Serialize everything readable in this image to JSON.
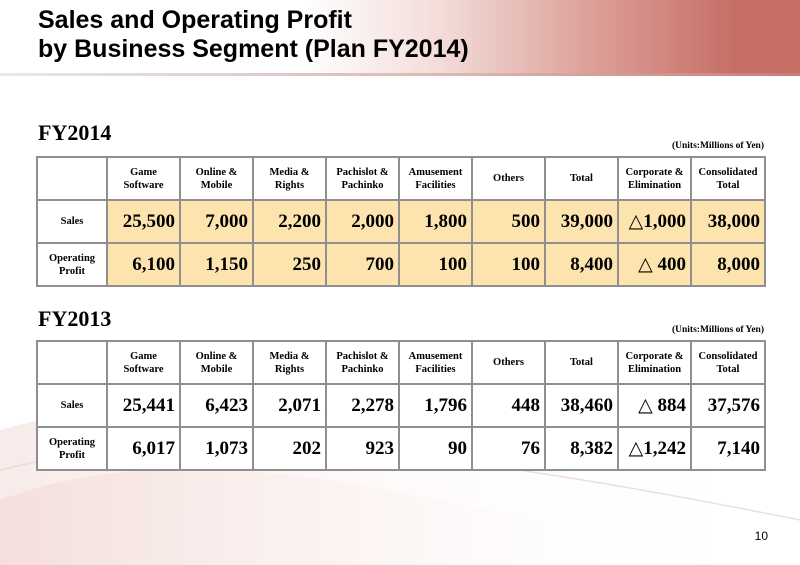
{
  "title": {
    "line1": "Sales and Operating Profit",
    "line2": "by Business Segment (Plan FY2014)"
  },
  "page_number": "10",
  "columns": [
    {
      "line1": "Game",
      "line2": "Software"
    },
    {
      "line1": "Online &",
      "line2": "Mobile"
    },
    {
      "line1": "Media &",
      "line2": "Rights"
    },
    {
      "line1": "Pachislot &",
      "line2": "Pachinko"
    },
    {
      "line1": "Amusement",
      "line2": "Facilities"
    },
    {
      "line1": "Others",
      "line2": ""
    },
    {
      "line1": "Total",
      "line2": ""
    },
    {
      "line1": "Corporate &",
      "line2": "Elimination"
    },
    {
      "line1": "Consolidated",
      "line2": "Total"
    }
  ],
  "row_labels": {
    "sales": "Sales",
    "op_line1": "Operating",
    "op_line2": "Profit"
  },
  "fy2014": {
    "heading": "FY2014",
    "units": "(Units:Millions of Yen)",
    "sales": [
      "25,500",
      "7,000",
      "2,200",
      "2,000",
      "1,800",
      "500",
      "39,000",
      "△1,000",
      "38,000"
    ],
    "operating_profit": [
      "6,100",
      "1,150",
      "250",
      "700",
      "100",
      "100",
      "8,400",
      "△ 400",
      "8,000"
    ]
  },
  "fy2013": {
    "heading": "FY2013",
    "units": "(Units:Millions of Yen)",
    "sales": [
      "25,441",
      "6,423",
      "2,071",
      "2,278",
      "1,796",
      "448",
      "38,460",
      "△ 884",
      "37,576"
    ],
    "operating_profit": [
      "6,017",
      "1,073",
      "202",
      "923",
      "90",
      "76",
      "8,382",
      "△1,242",
      "7,140"
    ]
  }
}
